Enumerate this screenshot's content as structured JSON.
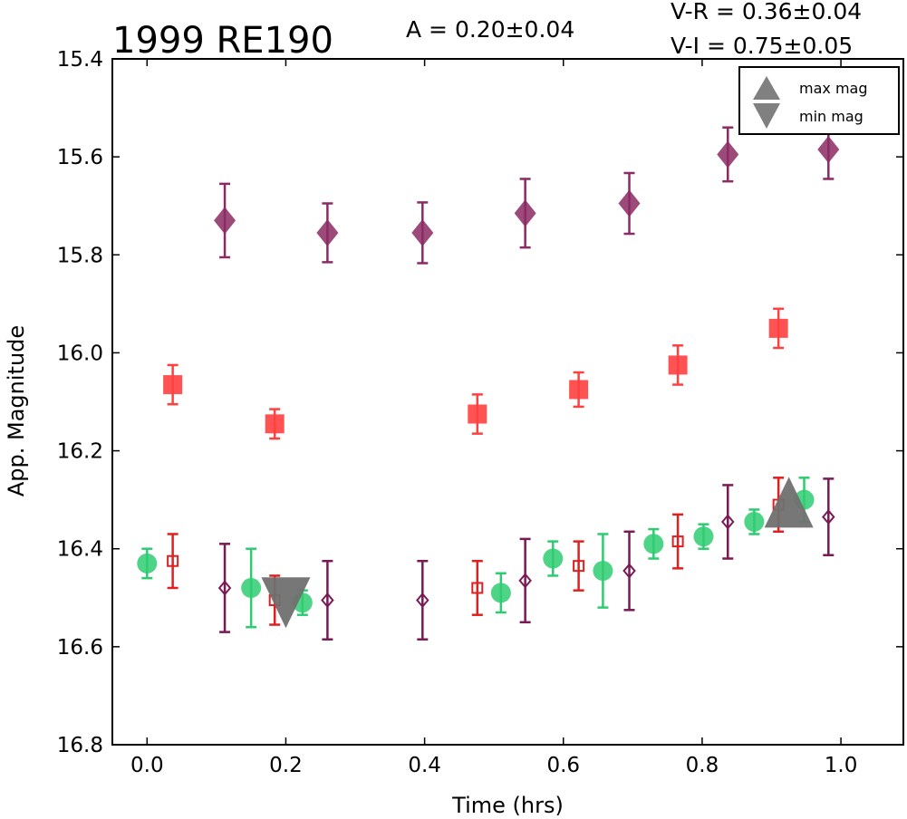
{
  "chart_data": {
    "type": "scatter",
    "title": "1999 RE190",
    "stats": {
      "amplitude": "A  = 0.20±0.04",
      "v_r": "V-R = 0.36±0.04",
      "v_i": "V-I  = 0.75±0.05"
    },
    "xlabel": "Time (hrs)",
    "ylabel": "App. Magnitude",
    "xlim": [
      -0.05,
      1.09
    ],
    "ylim": [
      16.8,
      15.4
    ],
    "y_inverted": true,
    "xticks": [
      0.0,
      0.2,
      0.4,
      0.6,
      0.8,
      1.0
    ],
    "xtick_labels": [
      "0.0",
      "0.2",
      "0.4",
      "0.6",
      "0.8",
      "1.0"
    ],
    "yticks": [
      15.4,
      15.6,
      15.8,
      16.0,
      16.2,
      16.4,
      16.6,
      16.8
    ],
    "ytick_labels": [
      "15.4",
      "15.6",
      "15.8",
      "16.0",
      "16.2",
      "16.4",
      "16.6",
      "16.8"
    ],
    "grid": false,
    "legend": {
      "placement": "top-right",
      "entries": [
        {
          "label": "max mag",
          "marker": "triangle-up",
          "color": "#808080"
        },
        {
          "label": "min mag",
          "marker": "triangle-down",
          "color": "#808080"
        }
      ]
    },
    "series": [
      {
        "marker": "circle-filled",
        "color": "#2ecc71",
        "points": [
          {
            "x": 0.0,
            "y": 16.43,
            "err": 0.03
          },
          {
            "x": 0.15,
            "y": 16.48,
            "err": 0.08
          },
          {
            "x": 0.224,
            "y": 16.51,
            "err": 0.025
          },
          {
            "x": 0.51,
            "y": 16.49,
            "err": 0.04
          },
          {
            "x": 0.585,
            "y": 16.42,
            "err": 0.035
          },
          {
            "x": 0.657,
            "y": 16.445,
            "err": 0.075
          },
          {
            "x": 0.73,
            "y": 16.39,
            "err": 0.03
          },
          {
            "x": 0.802,
            "y": 16.375,
            "err": 0.025
          },
          {
            "x": 0.875,
            "y": 16.345,
            "err": 0.025
          },
          {
            "x": 0.947,
            "y": 16.3,
            "err": 0.045
          }
        ]
      },
      {
        "marker": "square-filled",
        "color": "#ff4040",
        "points": [
          {
            "x": 0.037,
            "y": 16.065,
            "err": 0.04
          },
          {
            "x": 0.184,
            "y": 16.145,
            "err": 0.03
          },
          {
            "x": 0.476,
            "y": 16.125,
            "err": 0.04
          },
          {
            "x": 0.622,
            "y": 16.075,
            "err": 0.035
          },
          {
            "x": 0.765,
            "y": 16.025,
            "err": 0.04
          },
          {
            "x": 0.91,
            "y": 15.95,
            "err": 0.04
          }
        ]
      },
      {
        "marker": "square-open",
        "color": "#e02020",
        "points": [
          {
            "x": 0.037,
            "y": 16.425,
            "err": 0.055
          },
          {
            "x": 0.184,
            "y": 16.505,
            "err": 0.05
          },
          {
            "x": 0.476,
            "y": 16.48,
            "err": 0.055
          },
          {
            "x": 0.622,
            "y": 16.435,
            "err": 0.05
          },
          {
            "x": 0.765,
            "y": 16.385,
            "err": 0.055
          },
          {
            "x": 0.91,
            "y": 16.31,
            "err": 0.055
          }
        ]
      },
      {
        "marker": "diamond-filled",
        "color": "#8b2a63",
        "points": [
          {
            "x": 0.112,
            "y": 15.73,
            "err": 0.075
          },
          {
            "x": 0.26,
            "y": 15.755,
            "err": 0.06
          },
          {
            "x": 0.397,
            "y": 15.755,
            "err": 0.062
          },
          {
            "x": 0.545,
            "y": 15.715,
            "err": 0.07
          },
          {
            "x": 0.695,
            "y": 15.695,
            "err": 0.062
          },
          {
            "x": 0.837,
            "y": 15.595,
            "err": 0.055
          },
          {
            "x": 0.982,
            "y": 15.585,
            "err": 0.06
          }
        ]
      },
      {
        "marker": "diamond-open",
        "color": "#7a1a55",
        "points": [
          {
            "x": 0.112,
            "y": 16.48,
            "err": 0.09
          },
          {
            "x": 0.26,
            "y": 16.505,
            "err": 0.08
          },
          {
            "x": 0.397,
            "y": 16.505,
            "err": 0.08
          },
          {
            "x": 0.545,
            "y": 16.465,
            "err": 0.085
          },
          {
            "x": 0.695,
            "y": 16.445,
            "err": 0.08
          },
          {
            "x": 0.837,
            "y": 16.345,
            "err": 0.075
          },
          {
            "x": 0.982,
            "y": 16.335,
            "err": 0.078
          }
        ]
      }
    ],
    "extrema_markers": [
      {
        "type": "min",
        "marker": "triangle-down",
        "color": "#707070",
        "x": 0.2,
        "y": 16.51
      },
      {
        "type": "max",
        "marker": "triangle-up",
        "color": "#707070",
        "x": 0.925,
        "y": 16.305
      }
    ]
  }
}
